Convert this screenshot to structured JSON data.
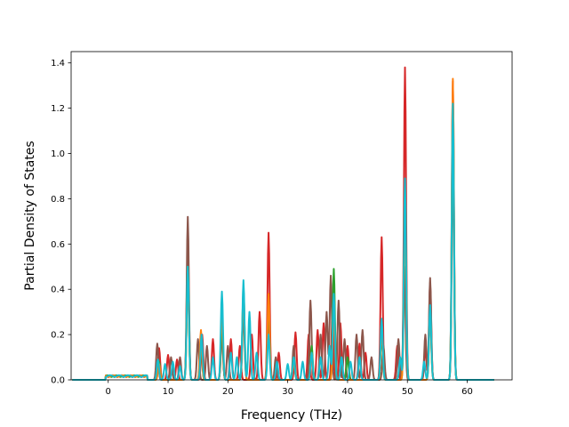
{
  "chart_data": {
    "type": "line",
    "title": "",
    "xlabel": "Frequency (THz)",
    "ylabel": "Partial Density of States",
    "xlim": [
      -6.2,
      67.5
    ],
    "ylim": [
      0,
      1.45
    ],
    "xticks": [
      0,
      10,
      20,
      30,
      40,
      50,
      60
    ],
    "yticks": [
      0.0,
      0.2,
      0.4,
      0.6,
      0.8,
      1.0,
      1.2,
      1.4
    ],
    "xtick_labels": [
      "0",
      "10",
      "20",
      "30",
      "40",
      "50",
      "60"
    ],
    "ytick_labels": [
      "0.0",
      "0.2",
      "0.4",
      "0.6",
      "0.8",
      "1.0",
      "1.2",
      "1.4"
    ],
    "grid": false,
    "legend": "none",
    "x_range": [
      -6,
      64.5
    ],
    "series": [
      {
        "color": "#d62728",
        "peaks": [
          [
            8.5,
            0.14
          ],
          [
            10,
            0.11
          ],
          [
            11.5,
            0.09
          ],
          [
            13.3,
            0.62
          ],
          [
            15.7,
            0.2
          ],
          [
            17.5,
            0.18
          ],
          [
            19,
            0.22
          ],
          [
            20.5,
            0.18
          ],
          [
            22,
            0.15
          ],
          [
            24,
            0.2
          ],
          [
            25.3,
            0.3
          ],
          [
            26.8,
            0.65
          ],
          [
            28.5,
            0.12
          ],
          [
            31.3,
            0.21
          ],
          [
            33.5,
            0.2
          ],
          [
            35,
            0.22
          ],
          [
            36,
            0.25
          ],
          [
            37.5,
            0.3
          ],
          [
            38.8,
            0.25
          ],
          [
            40,
            0.15
          ],
          [
            42,
            0.16
          ],
          [
            43,
            0.12
          ],
          [
            45.7,
            0.63
          ],
          [
            48.3,
            0.15
          ],
          [
            49.6,
            1.38
          ],
          [
            53,
            0.14
          ],
          [
            53.8,
            0.43
          ],
          [
            57.6,
            1.32
          ]
        ]
      },
      {
        "color": "#8c564b",
        "peaks": [
          [
            8.2,
            0.16
          ],
          [
            10.5,
            0.1
          ],
          [
            12,
            0.1
          ],
          [
            13.3,
            0.72
          ],
          [
            15,
            0.18
          ],
          [
            16.5,
            0.15
          ],
          [
            19,
            0.2
          ],
          [
            20,
            0.15
          ],
          [
            22.6,
            0.3
          ],
          [
            26.8,
            0.3
          ],
          [
            28,
            0.1
          ],
          [
            31,
            0.15
          ],
          [
            33.8,
            0.35
          ],
          [
            35.5,
            0.2
          ],
          [
            36.5,
            0.3
          ],
          [
            37.2,
            0.46
          ],
          [
            38.5,
            0.35
          ],
          [
            39.5,
            0.18
          ],
          [
            41.5,
            0.2
          ],
          [
            42.5,
            0.22
          ],
          [
            44,
            0.1
          ],
          [
            46,
            0.15
          ],
          [
            48.5,
            0.18
          ],
          [
            49.5,
            0.5
          ],
          [
            53,
            0.2
          ],
          [
            53.8,
            0.45
          ],
          [
            57.6,
            1.0
          ]
        ]
      },
      {
        "color": "#2ca02c",
        "peaks": [
          [
            8.5,
            0.08
          ],
          [
            13.3,
            0.5
          ],
          [
            15.5,
            0.18
          ],
          [
            19,
            0.25
          ],
          [
            22.6,
            0.4
          ],
          [
            26.8,
            0.35
          ],
          [
            31,
            0.1
          ],
          [
            34,
            0.15
          ],
          [
            37.7,
            0.49
          ],
          [
            40,
            0.1
          ],
          [
            45.7,
            0.2
          ],
          [
            49.6,
            0.85
          ],
          [
            53.8,
            0.3
          ],
          [
            57.6,
            1.2
          ]
        ]
      },
      {
        "color": "#ff7f0e",
        "peaks": [
          [
            8.5,
            0.07
          ],
          [
            13.3,
            0.45
          ],
          [
            15.5,
            0.22
          ],
          [
            19,
            0.3
          ],
          [
            22.6,
            0.4
          ],
          [
            26.8,
            0.38
          ],
          [
            31,
            0.08
          ],
          [
            34,
            0.12
          ],
          [
            37.7,
            0.3
          ],
          [
            45.7,
            0.22
          ],
          [
            49.6,
            0.8
          ],
          [
            53.8,
            0.3
          ],
          [
            57.6,
            1.33
          ]
        ]
      },
      {
        "color": "#17becf",
        "peaks": [
          [
            8.3,
            0.09
          ],
          [
            9.5,
            0.07
          ],
          [
            10.8,
            0.08
          ],
          [
            12,
            0.06
          ],
          [
            13.3,
            0.5
          ],
          [
            15.6,
            0.2
          ],
          [
            17.5,
            0.1
          ],
          [
            19,
            0.39
          ],
          [
            20.5,
            0.12
          ],
          [
            21.5,
            0.1
          ],
          [
            22.6,
            0.44
          ],
          [
            23.6,
            0.3
          ],
          [
            24.8,
            0.12
          ],
          [
            26.8,
            0.2
          ],
          [
            28.2,
            0.08
          ],
          [
            30,
            0.07
          ],
          [
            31,
            0.1
          ],
          [
            32.5,
            0.08
          ],
          [
            34,
            0.12
          ],
          [
            35.5,
            0.1
          ],
          [
            37,
            0.15
          ],
          [
            37.7,
            0.38
          ],
          [
            39,
            0.1
          ],
          [
            40.5,
            0.08
          ],
          [
            42,
            0.1
          ],
          [
            45.7,
            0.27
          ],
          [
            48.8,
            0.1
          ],
          [
            49.6,
            0.89
          ],
          [
            52.8,
            0.08
          ],
          [
            53.8,
            0.33
          ],
          [
            57.6,
            1.22
          ]
        ]
      }
    ]
  }
}
